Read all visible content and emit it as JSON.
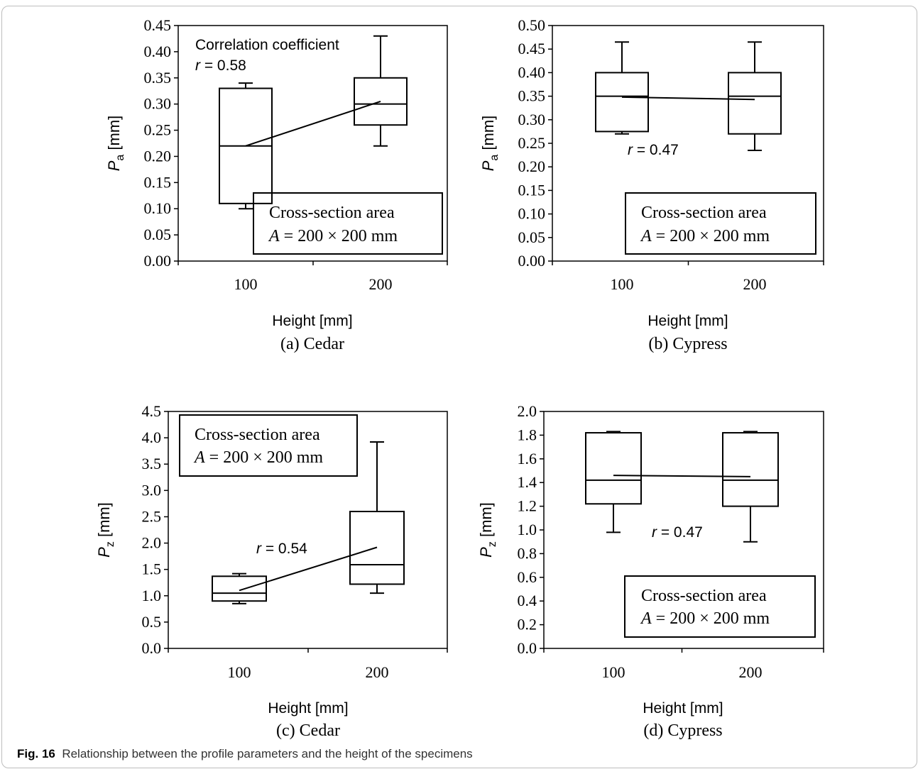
{
  "figure": {
    "caption_label": "Fig. 16",
    "caption_text": "Relationship between the profile parameters and the height of the specimens"
  },
  "chart_data": [
    {
      "type": "box",
      "title": "(a) Cedar",
      "xlabel": "Height [mm]",
      "ylabel_main": "P",
      "ylabel_sub": "a",
      "ylabel_unit": " [mm]",
      "ylim": [
        0,
        0.45
      ],
      "ytick_step": 0.05,
      "ytick_decimals": 2,
      "categories": [
        "100",
        "200"
      ],
      "boxes": [
        {
          "category": "100",
          "min": 0.1,
          "q1": 0.11,
          "median": 0.22,
          "q3": 0.33,
          "max": 0.34
        },
        {
          "category": "200",
          "min": 0.22,
          "q1": 0.26,
          "median": 0.3,
          "q3": 0.35,
          "max": 0.43
        }
      ],
      "trend_line": [
        0.22,
        0.305
      ],
      "correlation_heading": "Correlation coefficient",
      "r_label": "r",
      "r_value": " = 0.58",
      "legend_line1": "Cross-section area",
      "legend_var": "A",
      "legend_line2": " = 200 × 200 mm"
    },
    {
      "type": "box",
      "title": "(b) Cypress",
      "xlabel": "Height [mm]",
      "ylabel_main": "P",
      "ylabel_sub": "a",
      "ylabel_unit": " [mm]",
      "ylim": [
        0,
        0.5
      ],
      "ytick_step": 0.05,
      "ytick_decimals": 2,
      "categories": [
        "100",
        "200"
      ],
      "boxes": [
        {
          "category": "100",
          "min": 0.27,
          "q1": 0.275,
          "median": 0.35,
          "q3": 0.4,
          "max": 0.465
        },
        {
          "category": "200",
          "min": 0.235,
          "q1": 0.27,
          "median": 0.35,
          "q3": 0.4,
          "max": 0.465
        }
      ],
      "trend_line": [
        0.348,
        0.343
      ],
      "correlation_heading": "",
      "r_label": "r",
      "r_value": " = 0.47",
      "legend_line1": "Cross-section area",
      "legend_var": "A",
      "legend_line2": " = 200 × 200 mm"
    },
    {
      "type": "box",
      "title": "(c) Cedar",
      "xlabel": "Height [mm]",
      "ylabel_main": "P",
      "ylabel_sub": "z",
      "ylabel_unit": " [mm]",
      "ylim": [
        0,
        4.5
      ],
      "ytick_step": 0.5,
      "ytick_decimals": 1,
      "categories": [
        "100",
        "200"
      ],
      "boxes": [
        {
          "category": "100",
          "min": 0.85,
          "q1": 0.9,
          "median": 1.05,
          "q3": 1.37,
          "max": 1.42
        },
        {
          "category": "200",
          "min": 1.05,
          "q1": 1.22,
          "median": 1.59,
          "q3": 2.6,
          "max": 3.92
        }
      ],
      "trend_line": [
        1.1,
        1.92
      ],
      "correlation_heading": "",
      "r_label": "r",
      "r_value": " = 0.54",
      "legend_line1": "Cross-section area",
      "legend_var": "A",
      "legend_line2": " = 200 × 200 mm"
    },
    {
      "type": "box",
      "title": "(d) Cypress",
      "xlabel": "Height [mm]",
      "ylabel_main": "P",
      "ylabel_sub": "z",
      "ylabel_unit": " [mm]",
      "ylim": [
        0,
        2.0
      ],
      "ytick_step": 0.2,
      "ytick_decimals": 1,
      "categories": [
        "100",
        "200"
      ],
      "boxes": [
        {
          "category": "100",
          "min": 0.98,
          "q1": 1.22,
          "median": 1.42,
          "q3": 1.82,
          "max": 1.83
        },
        {
          "category": "200",
          "min": 0.9,
          "q1": 1.2,
          "median": 1.42,
          "q3": 1.82,
          "max": 1.83
        }
      ],
      "trend_line": [
        1.46,
        1.45
      ],
      "correlation_heading": "",
      "r_label": "r",
      "r_value": " = 0.47",
      "legend_line1": "Cross-section area",
      "legend_var": "A",
      "legend_line2": " = 200 × 200 mm"
    }
  ]
}
